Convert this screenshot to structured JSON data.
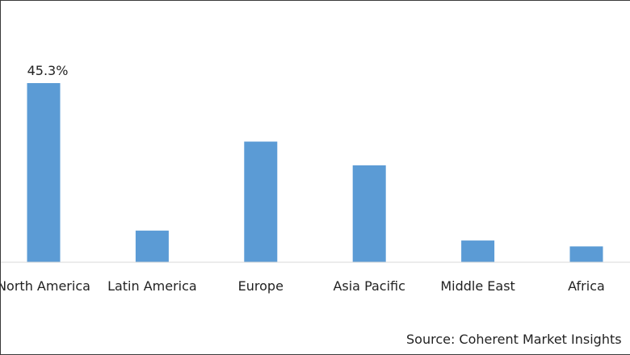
{
  "chart_data": {
    "type": "bar",
    "categories": [
      "North America",
      "Latin America",
      "Europe",
      "Asia Pacific",
      "Middle East",
      "Africa"
    ],
    "values": [
      45.3,
      8.0,
      30.5,
      24.5,
      5.5,
      4.0
    ],
    "data_labels": [
      "45.3%",
      null,
      null,
      null,
      null,
      null
    ],
    "title": "",
    "xlabel": "",
    "ylabel": "",
    "ylim": [
      0,
      60
    ],
    "unit": "%",
    "grid": false,
    "legend": "none",
    "bar_color": "#5b9bd5",
    "axis_color": "#d9d9d9"
  },
  "source": "Source: Coherent Market Insights"
}
